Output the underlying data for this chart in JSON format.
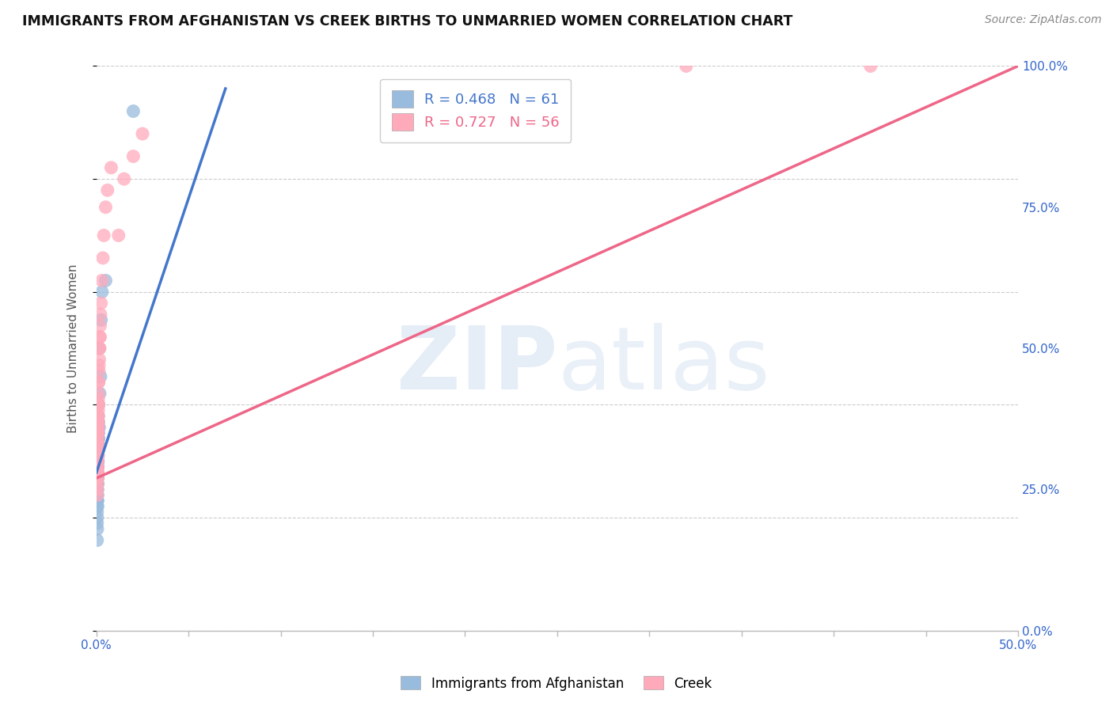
{
  "title": "IMMIGRANTS FROM AFGHANISTAN VS CREEK BIRTHS TO UNMARRIED WOMEN CORRELATION CHART",
  "source": "Source: ZipAtlas.com",
  "ylabel_left": "Births to Unmarried Women",
  "legend_label1": "Immigrants from Afghanistan",
  "legend_label2": "Creek",
  "r1": 0.468,
  "n1": 61,
  "r2": 0.727,
  "n2": 56,
  "color_blue": "#99BBDD",
  "color_pink": "#FFAABB",
  "color_blue_line": "#4477CC",
  "color_pink_line": "#EE6688",
  "watermark_zip": "#C8D8EE",
  "watermark_atlas": "#C8D8EE",
  "blue_scatter_x": [
    0.0008,
    0.001,
    0.0012,
    0.0005,
    0.0015,
    0.0008,
    0.001,
    0.0007,
    0.0006,
    0.0009,
    0.0011,
    0.0008,
    0.0005,
    0.0007,
    0.0009,
    0.0006,
    0.0008,
    0.001,
    0.0007,
    0.0005,
    0.0009,
    0.0006,
    0.0008,
    0.0004,
    0.0007,
    0.001,
    0.0005,
    0.0008,
    0.0006,
    0.0009,
    0.0007,
    0.0005,
    0.0008,
    0.0006,
    0.0004,
    0.0007,
    0.0009,
    0.0005,
    0.0006,
    0.0008,
    0.001,
    0.0007,
    0.0005,
    0.0009,
    0.0006,
    0.0008,
    0.0004,
    0.0007,
    0.0005,
    0.0009,
    0.0012,
    0.0008,
    0.0006,
    0.0022,
    0.0018,
    0.0015,
    0.0025,
    0.003,
    0.0004,
    0.005,
    0.02
  ],
  "blue_scatter_y": [
    0.3,
    0.32,
    0.34,
    0.28,
    0.36,
    0.31,
    0.33,
    0.29,
    0.27,
    0.35,
    0.37,
    0.32,
    0.26,
    0.3,
    0.34,
    0.28,
    0.33,
    0.36,
    0.29,
    0.25,
    0.34,
    0.27,
    0.32,
    0.23,
    0.28,
    0.35,
    0.24,
    0.31,
    0.26,
    0.33,
    0.29,
    0.22,
    0.31,
    0.25,
    0.21,
    0.27,
    0.32,
    0.23,
    0.24,
    0.3,
    0.38,
    0.28,
    0.2,
    0.35,
    0.23,
    0.32,
    0.19,
    0.26,
    0.18,
    0.34,
    0.4,
    0.33,
    0.22,
    0.45,
    0.42,
    0.5,
    0.55,
    0.6,
    0.16,
    0.62,
    0.92
  ],
  "pink_scatter_x": [
    0.0005,
    0.0008,
    0.0006,
    0.001,
    0.0007,
    0.0009,
    0.0005,
    0.0008,
    0.0011,
    0.0006,
    0.0009,
    0.0007,
    0.0005,
    0.0008,
    0.001,
    0.0006,
    0.0009,
    0.0007,
    0.0005,
    0.0008,
    0.001,
    0.0006,
    0.0012,
    0.0008,
    0.0007,
    0.0009,
    0.0011,
    0.0006,
    0.0014,
    0.0008,
    0.001,
    0.0007,
    0.0016,
    0.0012,
    0.0009,
    0.0018,
    0.0014,
    0.001,
    0.002,
    0.0016,
    0.0022,
    0.0018,
    0.0025,
    0.002,
    0.003,
    0.0035,
    0.004,
    0.005,
    0.006,
    0.008,
    0.012,
    0.015,
    0.02,
    0.025,
    0.32,
    0.42
  ],
  "pink_scatter_y": [
    0.3,
    0.35,
    0.28,
    0.38,
    0.32,
    0.36,
    0.27,
    0.33,
    0.4,
    0.29,
    0.37,
    0.31,
    0.25,
    0.34,
    0.39,
    0.28,
    0.36,
    0.3,
    0.24,
    0.35,
    0.41,
    0.27,
    0.44,
    0.33,
    0.29,
    0.38,
    0.42,
    0.26,
    0.46,
    0.31,
    0.4,
    0.28,
    0.5,
    0.44,
    0.37,
    0.52,
    0.47,
    0.4,
    0.54,
    0.48,
    0.56,
    0.5,
    0.58,
    0.52,
    0.62,
    0.66,
    0.7,
    0.75,
    0.78,
    0.82,
    0.7,
    0.8,
    0.84,
    0.88,
    1.0,
    1.0
  ],
  "blue_line_x0": 0.0,
  "blue_line_x1": 0.07,
  "blue_line_y0": 0.28,
  "blue_line_y1": 0.96,
  "pink_line_x0": 0.0,
  "pink_line_x1": 0.5,
  "pink_line_y0": 0.27,
  "pink_line_y1": 1.0,
  "xlim": [
    0,
    0.5
  ],
  "ylim": [
    0,
    1.0
  ],
  "x_ticks": [
    0,
    0.05,
    0.1,
    0.15,
    0.2,
    0.25,
    0.3,
    0.35,
    0.4,
    0.45,
    0.5
  ],
  "y_ticks": [
    0,
    0.25,
    0.5,
    0.75,
    1.0
  ],
  "y_tick_labels": [
    "0.0%",
    "25.0%",
    "50.0%",
    "75.0%",
    "100.0%"
  ]
}
